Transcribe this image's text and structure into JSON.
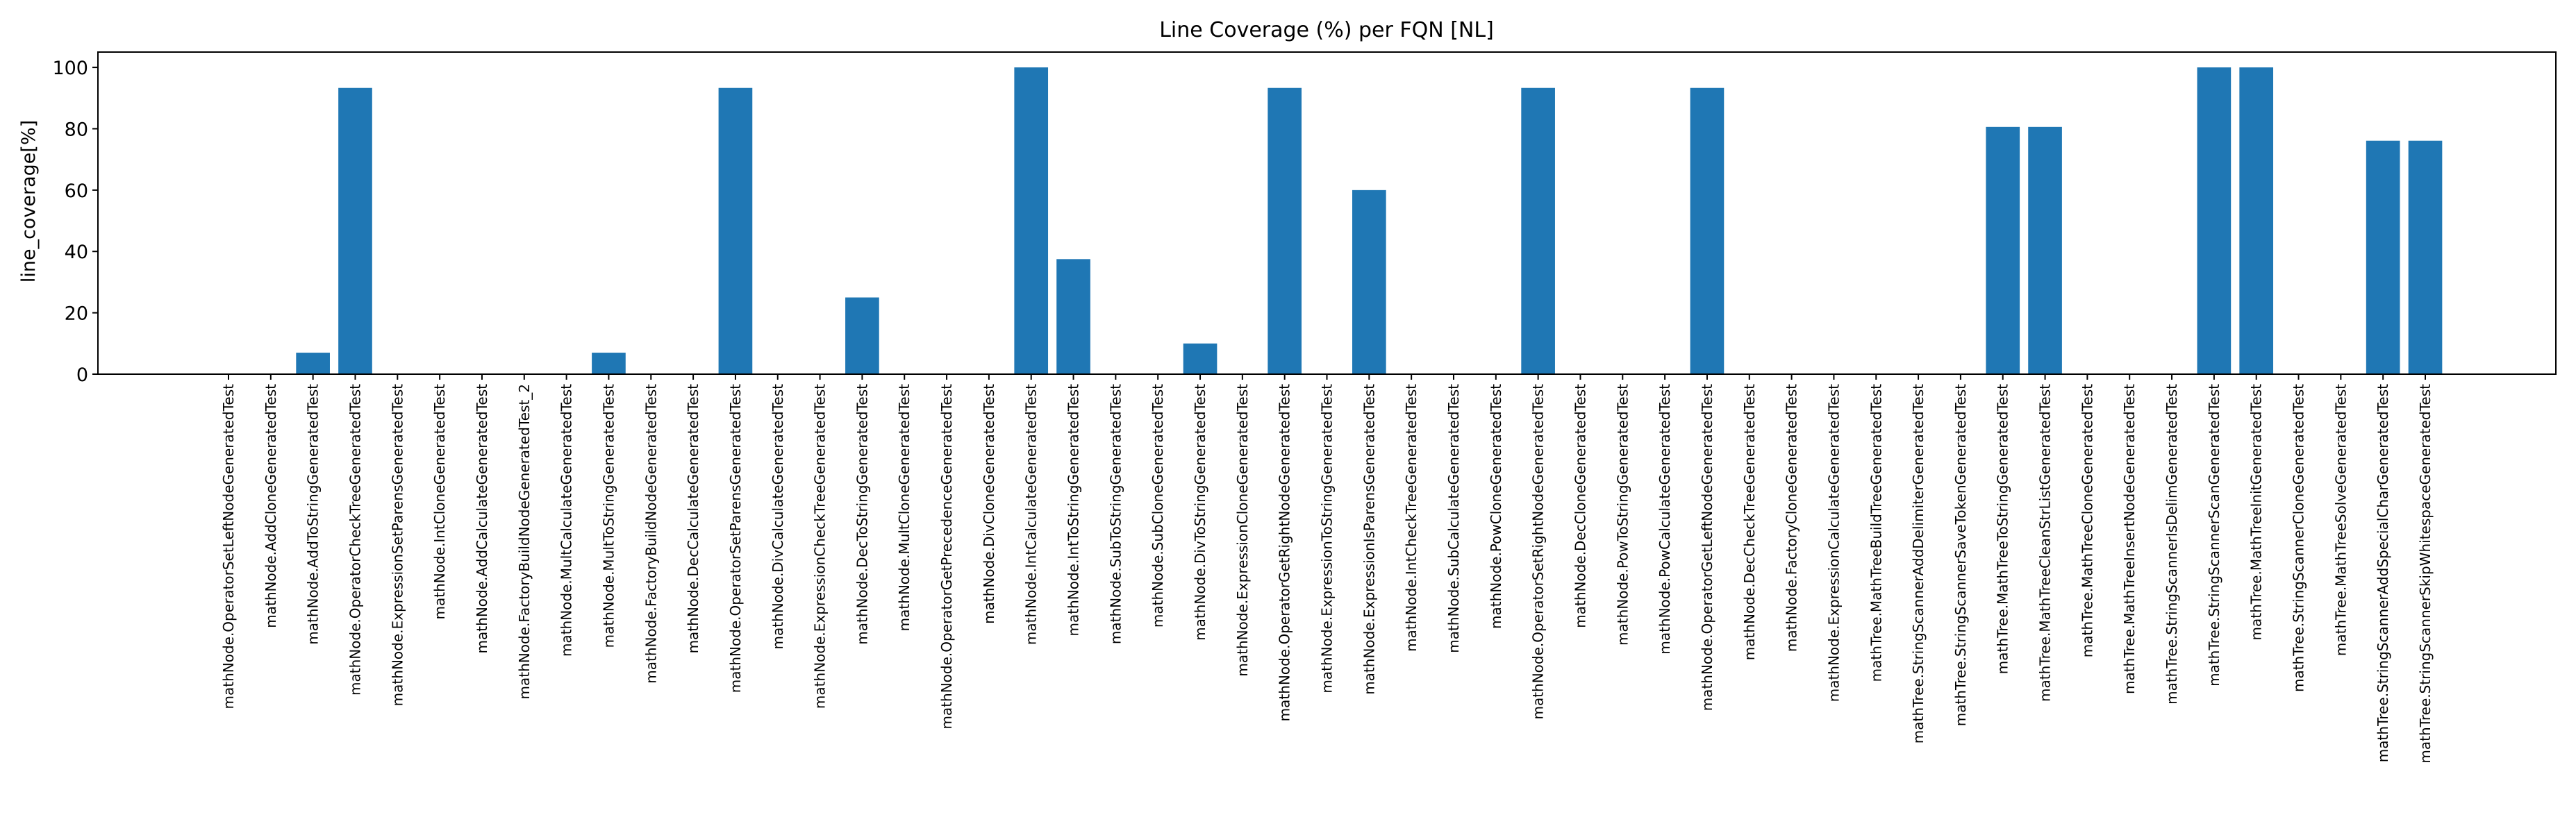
{
  "chart_data": {
    "type": "bar",
    "title": "Line Coverage (%) per FQN [NL]",
    "xlabel": "",
    "ylabel": "line_coverage[%]",
    "ylim": [
      0,
      105
    ],
    "yticks": [
      0,
      20,
      40,
      60,
      80,
      100
    ],
    "grid": false,
    "legend": "none",
    "bar_color": "#1f77b4",
    "categories": [
      "mathNode.OperatorSetLeftNodeGeneratedTest",
      "mathNode.AddCloneGeneratedTest",
      "mathNode.AddToStringGeneratedTest",
      "mathNode.OperatorCheckTreeGeneratedTest",
      "mathNode.ExpressionSetParensGeneratedTest",
      "mathNode.IntCloneGeneratedTest",
      "mathNode.AddCalculateGeneratedTest",
      "mathNode.FactoryBuildNodeGeneratedTest_2",
      "mathNode.MultCalculateGeneratedTest",
      "mathNode.MultToStringGeneratedTest",
      "mathNode.FactoryBuildNodeGeneratedTest",
      "mathNode.DecCalculateGeneratedTest",
      "mathNode.OperatorSetParensGeneratedTest",
      "mathNode.DivCalculateGeneratedTest",
      "mathNode.ExpressionCheckTreeGeneratedTest",
      "mathNode.DecToStringGeneratedTest",
      "mathNode.MultCloneGeneratedTest",
      "mathNode.OperatorGetPrecedenceGeneratedTest",
      "mathNode.DivCloneGeneratedTest",
      "mathNode.IntCalculateGeneratedTest",
      "mathNode.IntToStringGeneratedTest",
      "mathNode.SubToStringGeneratedTest",
      "mathNode.SubCloneGeneratedTest",
      "mathNode.DivToStringGeneratedTest",
      "mathNode.ExpressionCloneGeneratedTest",
      "mathNode.OperatorGetRightNodeGeneratedTest",
      "mathNode.ExpressionToStringGeneratedTest",
      "mathNode.ExpressionIsParensGeneratedTest",
      "mathNode.IntCheckTreeGeneratedTest",
      "mathNode.SubCalculateGeneratedTest",
      "mathNode.PowCloneGeneratedTest",
      "mathNode.OperatorSetRightNodeGeneratedTest",
      "mathNode.DecCloneGeneratedTest",
      "mathNode.PowToStringGeneratedTest",
      "mathNode.PowCalculateGeneratedTest",
      "mathNode.OperatorGetLeftNodeGeneratedTest",
      "mathNode.DecCheckTreeGeneratedTest",
      "mathNode.FactoryCloneGeneratedTest",
      "mathNode.ExpressionCalculateGeneratedTest",
      "mathTree.MathTreeBuildTreeGeneratedTest",
      "mathTree.StringScannerAddDelimiterGeneratedTest",
      "mathTree.StringScannerSaveTokenGeneratedTest",
      "mathTree.MathTreeToStringGeneratedTest",
      "mathTree.MathTreeCleanStrListGeneratedTest",
      "mathTree.MathTreeCloneGeneratedTest",
      "mathTree.MathTreeInsertNodeGeneratedTest",
      "mathTree.StringScannerIsDelimGeneratedTest",
      "mathTree.StringScannerScanGeneratedTest",
      "mathTree.MathTreeInitGeneratedTest",
      "mathTree.StringScannerCloneGeneratedTest",
      "mathTree.MathTreeSolveGeneratedTest",
      "mathTree.StringScannerAddSpecialCharGeneratedTest",
      "mathTree.StringScannerSkipWhitespaceGeneratedTest"
    ],
    "values": [
      0,
      0,
      7,
      93.3,
      0,
      0,
      0,
      0,
      0,
      7,
      0,
      0,
      93.3,
      0,
      0,
      25,
      0,
      0,
      0,
      100,
      37.5,
      0,
      0,
      10,
      0,
      93.3,
      0,
      60,
      0,
      0,
      0,
      93.3,
      0,
      0,
      0,
      93.3,
      0,
      0,
      0,
      0,
      0,
      0,
      80.6,
      80.6,
      0,
      0,
      0,
      100,
      100,
      0,
      0,
      76.1,
      76.1
    ]
  }
}
